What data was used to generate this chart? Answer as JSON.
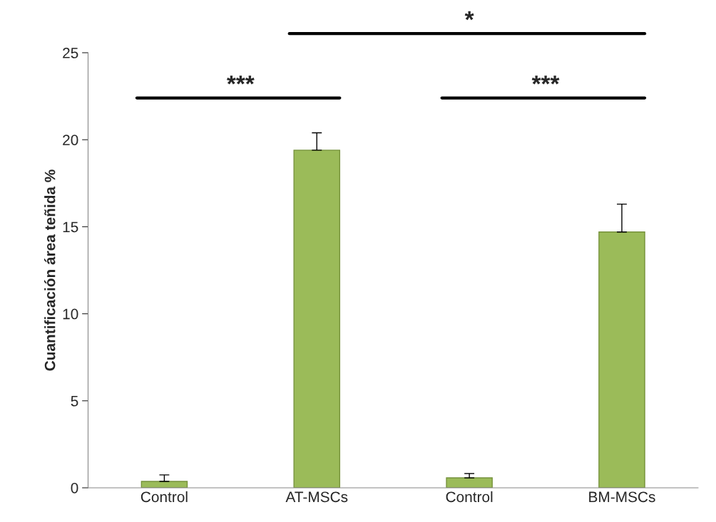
{
  "chart_data": {
    "type": "bar",
    "ylabel": "Cuantificación área teñida %",
    "categories": [
      "Control",
      "AT-MSCs",
      "Control",
      "BM-MSCs"
    ],
    "values": [
      0.37,
      19.4,
      0.57,
      14.7
    ],
    "errors": [
      [
        0.37,
        0.74
      ],
      [
        19.4,
        20.4
      ],
      [
        0.57,
        0.82
      ],
      [
        14.7,
        16.3
      ]
    ],
    "color": "#9bbb59",
    "ylim": [
      0,
      25
    ],
    "yticks": [
      0,
      5,
      10,
      15,
      20,
      25
    ],
    "grid": false,
    "annotations": [
      "***",
      "*",
      "***"
    ]
  }
}
